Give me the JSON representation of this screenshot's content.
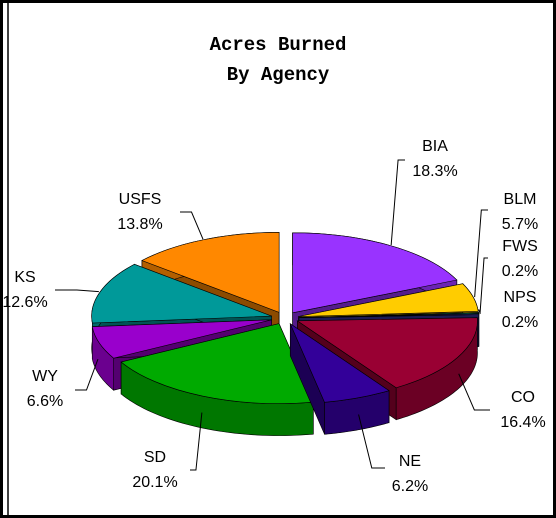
{
  "chart_data": {
    "type": "pie3d",
    "title_lines": [
      "Acres Burned",
      "By Agency"
    ],
    "categories": [
      "BIA",
      "BLM",
      "FWS",
      "NPS",
      "CO",
      "NE",
      "SD",
      "WY",
      "KS",
      "USFS"
    ],
    "values": [
      18.3,
      5.7,
      0.2,
      0.2,
      16.4,
      6.2,
      20.1,
      6.6,
      12.6,
      13.8
    ],
    "value_labels": [
      "18.3%",
      "5.7%",
      "0.2%",
      "0.2%",
      "16.4%",
      "6.2%",
      "20.1%",
      "6.6%",
      "12.6%",
      "13.8%"
    ],
    "colors": [
      "#9933ff",
      "#ffcc00",
      "#009966",
      "#333399",
      "#990033",
      "#330099",
      "#00aa00",
      "#9900cc",
      "#009999",
      "#ff8800"
    ]
  }
}
